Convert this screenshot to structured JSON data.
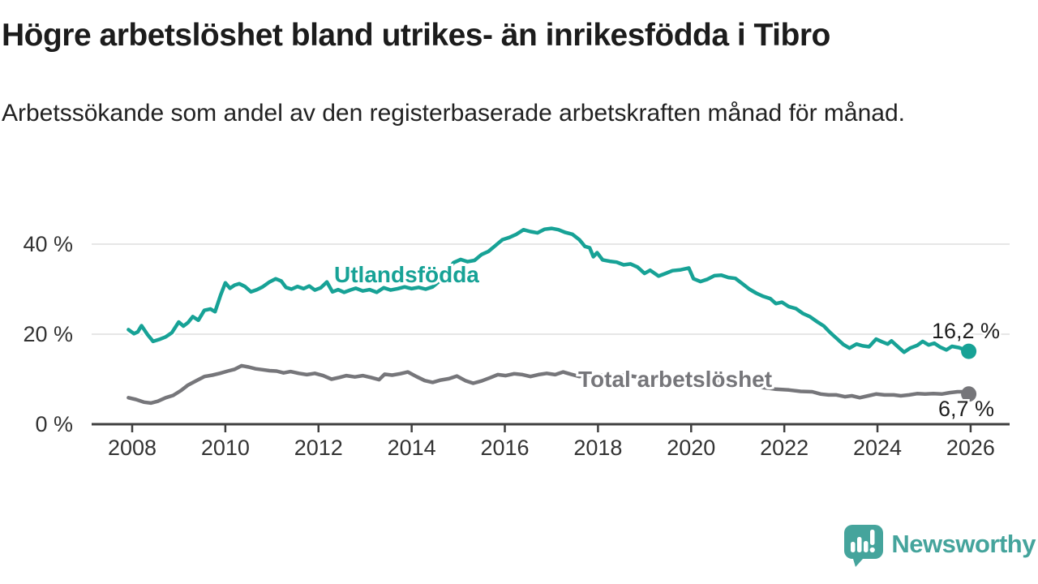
{
  "header": {
    "title": "Högre arbetslöshet bland utrikes- än inrikesfödda i Tibro",
    "subtitle": "Arbetssökande som andel av den registerbaserade arbetskraften månad för månad."
  },
  "footer": {
    "brand": "Newsworthy",
    "brand_color": "#45a49c"
  },
  "chart_data": {
    "type": "line",
    "title": "Högre arbetslöshet bland utrikes- än inrikesfödda i Tibro",
    "subtitle": "Arbetssökande som andel av den registerbaserade arbetskraften månad för månad.",
    "xlabel": "",
    "ylabel": "",
    "grid": "horizontal",
    "xlim": [
      2007.1,
      2026.8
    ],
    "ylim": [
      0,
      45
    ],
    "x_ticks": [
      2008,
      2010,
      2012,
      2014,
      2016,
      2018,
      2020,
      2022,
      2024,
      2026
    ],
    "x_tick_labels": [
      "2008",
      "2010",
      "2012",
      "2014",
      "2016",
      "2018",
      "2020",
      "2022",
      "2024",
      "2026"
    ],
    "y_ticks": [
      {
        "value": 0,
        "label": "0 %"
      },
      {
        "value": 20,
        "label": "20 %"
      },
      {
        "value": 40,
        "label": "40 %"
      }
    ],
    "series": [
      {
        "name": "Utlandsfödda",
        "color": "#17a296",
        "end_value": 16.2,
        "end_label": "16,2 %",
        "points": [
          [
            2007.92,
            21.0
          ],
          [
            2008.04,
            20.1
          ],
          [
            2008.12,
            20.5
          ],
          [
            2008.2,
            21.9
          ],
          [
            2008.33,
            19.9
          ],
          [
            2008.45,
            18.4
          ],
          [
            2008.6,
            18.9
          ],
          [
            2008.72,
            19.4
          ],
          [
            2008.85,
            20.3
          ],
          [
            2009.0,
            22.7
          ],
          [
            2009.1,
            21.8
          ],
          [
            2009.2,
            22.6
          ],
          [
            2009.3,
            23.9
          ],
          [
            2009.42,
            23.1
          ],
          [
            2009.55,
            25.3
          ],
          [
            2009.68,
            25.6
          ],
          [
            2009.78,
            25.0
          ],
          [
            2009.9,
            28.7
          ],
          [
            2010.0,
            31.4
          ],
          [
            2010.1,
            30.2
          ],
          [
            2010.2,
            30.9
          ],
          [
            2010.3,
            31.2
          ],
          [
            2010.42,
            30.6
          ],
          [
            2010.55,
            29.4
          ],
          [
            2010.68,
            29.9
          ],
          [
            2010.8,
            30.5
          ],
          [
            2010.95,
            31.6
          ],
          [
            2011.08,
            32.3
          ],
          [
            2011.2,
            31.8
          ],
          [
            2011.3,
            30.4
          ],
          [
            2011.42,
            30.0
          ],
          [
            2011.55,
            30.6
          ],
          [
            2011.68,
            30.1
          ],
          [
            2011.8,
            30.7
          ],
          [
            2011.92,
            29.8
          ],
          [
            2012.05,
            30.3
          ],
          [
            2012.18,
            31.6
          ],
          [
            2012.3,
            29.4
          ],
          [
            2012.42,
            29.9
          ],
          [
            2012.55,
            29.3
          ],
          [
            2012.68,
            29.8
          ],
          [
            2012.8,
            30.2
          ],
          [
            2012.95,
            29.6
          ],
          [
            2013.1,
            29.9
          ],
          [
            2013.25,
            29.3
          ],
          [
            2013.4,
            30.3
          ],
          [
            2013.55,
            29.8
          ],
          [
            2013.7,
            30.1
          ],
          [
            2013.85,
            30.5
          ],
          [
            2014.0,
            30.1
          ],
          [
            2014.15,
            30.4
          ],
          [
            2014.3,
            30.0
          ],
          [
            2014.45,
            30.5
          ],
          [
            2014.6,
            31.8
          ],
          [
            2014.75,
            33.8
          ],
          [
            2014.9,
            35.9
          ],
          [
            2015.05,
            36.6
          ],
          [
            2015.2,
            36.1
          ],
          [
            2015.35,
            36.4
          ],
          [
            2015.5,
            37.7
          ],
          [
            2015.65,
            38.4
          ],
          [
            2015.8,
            39.7
          ],
          [
            2015.95,
            41.0
          ],
          [
            2016.1,
            41.5
          ],
          [
            2016.25,
            42.2
          ],
          [
            2016.4,
            43.2
          ],
          [
            2016.55,
            42.8
          ],
          [
            2016.7,
            42.5
          ],
          [
            2016.85,
            43.3
          ],
          [
            2017.0,
            43.5
          ],
          [
            2017.15,
            43.2
          ],
          [
            2017.3,
            42.6
          ],
          [
            2017.45,
            42.2
          ],
          [
            2017.6,
            41.0
          ],
          [
            2017.72,
            39.5
          ],
          [
            2017.82,
            39.2
          ],
          [
            2017.9,
            37.2
          ],
          [
            2017.98,
            38.1
          ],
          [
            2018.1,
            36.5
          ],
          [
            2018.25,
            36.2
          ],
          [
            2018.4,
            36.0
          ],
          [
            2018.55,
            35.4
          ],
          [
            2018.7,
            35.6
          ],
          [
            2018.85,
            34.9
          ],
          [
            2019.0,
            33.5
          ],
          [
            2019.12,
            34.2
          ],
          [
            2019.3,
            32.9
          ],
          [
            2019.45,
            33.5
          ],
          [
            2019.6,
            34.1
          ],
          [
            2019.78,
            34.3
          ],
          [
            2019.95,
            34.7
          ],
          [
            2020.05,
            32.3
          ],
          [
            2020.2,
            31.7
          ],
          [
            2020.35,
            32.2
          ],
          [
            2020.5,
            33.0
          ],
          [
            2020.65,
            33.1
          ],
          [
            2020.8,
            32.6
          ],
          [
            2020.95,
            32.4
          ],
          [
            2021.1,
            31.2
          ],
          [
            2021.25,
            30.0
          ],
          [
            2021.4,
            29.1
          ],
          [
            2021.55,
            28.4
          ],
          [
            2021.7,
            27.9
          ],
          [
            2021.82,
            26.8
          ],
          [
            2021.95,
            27.1
          ],
          [
            2022.1,
            26.1
          ],
          [
            2022.25,
            25.7
          ],
          [
            2022.4,
            24.6
          ],
          [
            2022.55,
            23.9
          ],
          [
            2022.7,
            22.8
          ],
          [
            2022.85,
            21.8
          ],
          [
            2022.98,
            20.4
          ],
          [
            2023.12,
            19.1
          ],
          [
            2023.27,
            17.7
          ],
          [
            2023.4,
            16.9
          ],
          [
            2023.55,
            17.8
          ],
          [
            2023.68,
            17.4
          ],
          [
            2023.82,
            17.2
          ],
          [
            2023.97,
            18.9
          ],
          [
            2024.1,
            18.3
          ],
          [
            2024.22,
            17.8
          ],
          [
            2024.3,
            18.5
          ],
          [
            2024.45,
            17.1
          ],
          [
            2024.57,
            16.0
          ],
          [
            2024.7,
            16.9
          ],
          [
            2024.85,
            17.5
          ],
          [
            2024.97,
            18.4
          ],
          [
            2025.1,
            17.6
          ],
          [
            2025.22,
            18.0
          ],
          [
            2025.35,
            17.1
          ],
          [
            2025.48,
            16.5
          ],
          [
            2025.6,
            17.3
          ],
          [
            2025.75,
            17.0
          ],
          [
            2025.88,
            16.5
          ],
          [
            2025.96,
            16.2
          ]
        ]
      },
      {
        "name": "Total arbetslöshet",
        "color": "#76767a",
        "end_value": 6.7,
        "end_label": "6,7 %",
        "points": [
          [
            2007.92,
            5.9
          ],
          [
            2008.08,
            5.5
          ],
          [
            2008.25,
            4.9
          ],
          [
            2008.4,
            4.7
          ],
          [
            2008.55,
            5.1
          ],
          [
            2008.72,
            5.9
          ],
          [
            2008.88,
            6.4
          ],
          [
            2009.05,
            7.5
          ],
          [
            2009.2,
            8.7
          ],
          [
            2009.38,
            9.7
          ],
          [
            2009.55,
            10.6
          ],
          [
            2009.72,
            10.9
          ],
          [
            2009.88,
            11.3
          ],
          [
            2010.05,
            11.8
          ],
          [
            2010.2,
            12.2
          ],
          [
            2010.35,
            13.0
          ],
          [
            2010.5,
            12.7
          ],
          [
            2010.65,
            12.3
          ],
          [
            2010.8,
            12.1
          ],
          [
            2010.95,
            11.9
          ],
          [
            2011.1,
            11.8
          ],
          [
            2011.25,
            11.4
          ],
          [
            2011.4,
            11.7
          ],
          [
            2011.58,
            11.3
          ],
          [
            2011.75,
            11.0
          ],
          [
            2011.92,
            11.3
          ],
          [
            2012.1,
            10.8
          ],
          [
            2012.28,
            10.0
          ],
          [
            2012.45,
            10.4
          ],
          [
            2012.6,
            10.8
          ],
          [
            2012.78,
            10.5
          ],
          [
            2012.95,
            10.8
          ],
          [
            2013.12,
            10.4
          ],
          [
            2013.3,
            9.9
          ],
          [
            2013.42,
            11.1
          ],
          [
            2013.58,
            10.9
          ],
          [
            2013.75,
            11.2
          ],
          [
            2013.92,
            11.6
          ],
          [
            2014.1,
            10.6
          ],
          [
            2014.28,
            9.7
          ],
          [
            2014.45,
            9.3
          ],
          [
            2014.62,
            9.8
          ],
          [
            2014.8,
            10.1
          ],
          [
            2014.97,
            10.7
          ],
          [
            2015.15,
            9.7
          ],
          [
            2015.32,
            9.1
          ],
          [
            2015.5,
            9.6
          ],
          [
            2015.68,
            10.3
          ],
          [
            2015.85,
            11.0
          ],
          [
            2016.02,
            10.8
          ],
          [
            2016.2,
            11.2
          ],
          [
            2016.38,
            11.0
          ],
          [
            2016.55,
            10.6
          ],
          [
            2016.72,
            11.0
          ],
          [
            2016.9,
            11.3
          ],
          [
            2017.08,
            11.0
          ],
          [
            2017.25,
            11.6
          ],
          [
            2017.42,
            11.1
          ],
          [
            2017.6,
            10.6
          ],
          [
            2017.8,
            10.9
          ],
          [
            2018.0,
            11.0
          ],
          [
            2018.3,
            10.7
          ],
          [
            2018.6,
            10.9
          ],
          [
            2018.9,
            10.4
          ],
          [
            2019.2,
            10.2
          ],
          [
            2019.5,
            10.0
          ],
          [
            2019.8,
            9.8
          ],
          [
            2020.05,
            9.4
          ],
          [
            2020.3,
            9.9
          ],
          [
            2020.6,
            9.7
          ],
          [
            2020.9,
            9.2
          ],
          [
            2021.2,
            8.7
          ],
          [
            2021.5,
            8.2
          ],
          [
            2021.8,
            7.8
          ],
          [
            2022.1,
            7.6
          ],
          [
            2022.35,
            7.3
          ],
          [
            2022.6,
            7.2
          ],
          [
            2022.78,
            6.7
          ],
          [
            2022.95,
            6.5
          ],
          [
            2023.12,
            6.5
          ],
          [
            2023.3,
            6.1
          ],
          [
            2023.45,
            6.3
          ],
          [
            2023.62,
            5.9
          ],
          [
            2023.8,
            6.3
          ],
          [
            2023.97,
            6.7
          ],
          [
            2024.15,
            6.5
          ],
          [
            2024.35,
            6.5
          ],
          [
            2024.5,
            6.3
          ],
          [
            2024.68,
            6.5
          ],
          [
            2024.85,
            6.8
          ],
          [
            2025.02,
            6.7
          ],
          [
            2025.2,
            6.8
          ],
          [
            2025.38,
            6.7
          ],
          [
            2025.55,
            7.0
          ],
          [
            2025.72,
            7.2
          ],
          [
            2025.85,
            7.2
          ],
          [
            2025.96,
            6.7
          ]
        ]
      }
    ]
  }
}
